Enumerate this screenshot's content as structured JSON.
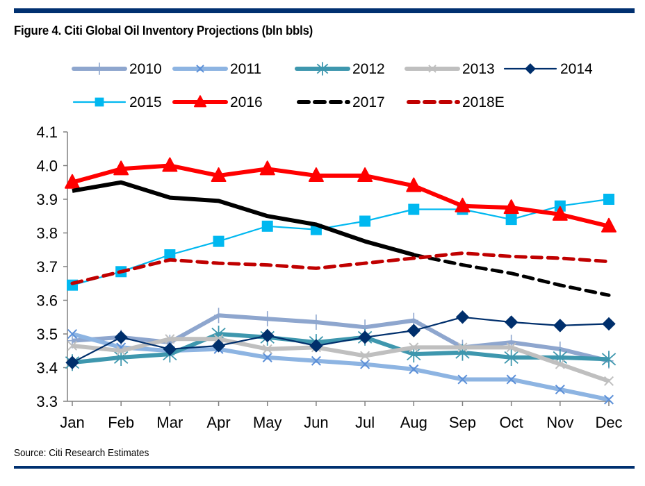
{
  "figure": {
    "title": "Figure 4. Citi Global Oil Inventory Projections (bln bbls)",
    "source": "Source: Citi Research Estimates",
    "rule_color": "#003070"
  },
  "chart_data": {
    "type": "line",
    "title": "Figure 4. Citi Global Oil Inventory Projections (bln bbls)",
    "xlabel": "",
    "ylabel": "",
    "categories": [
      "Jan",
      "Feb",
      "Mar",
      "Apr",
      "May",
      "Jun",
      "Jul",
      "Aug",
      "Sep",
      "Oct",
      "Nov",
      "Dec"
    ],
    "ylim": [
      3.3,
      4.1
    ],
    "yticks": [
      3.3,
      3.4,
      3.5,
      3.6,
      3.7,
      3.8,
      3.9,
      4.0,
      4.1
    ],
    "ytick_labels": [
      "3.3",
      "3.4",
      "3.5",
      "3.6",
      "3.7",
      "3.8",
      "3.9",
      "4.0",
      "4.1"
    ],
    "grid": false,
    "legend_position": "top",
    "series": [
      {
        "name": "2010",
        "color": "#8EA6CE",
        "marker": "plus",
        "marker_color": "#8EA6CE",
        "style": "solid",
        "weight": "thick",
        "values": [
          3.48,
          3.49,
          3.475,
          3.555,
          3.545,
          3.535,
          3.52,
          3.54,
          3.46,
          3.475,
          3.455,
          3.42
        ]
      },
      {
        "name": "2011",
        "color": "#8DB4E2",
        "marker": "x",
        "marker_color": "#5B8FD8",
        "style": "solid",
        "weight": "thick",
        "values": [
          3.5,
          3.46,
          3.45,
          3.455,
          3.43,
          3.42,
          3.41,
          3.395,
          3.365,
          3.365,
          3.335,
          3.305
        ]
      },
      {
        "name": "2012",
        "color": "#3E97AE",
        "marker": "asterisk",
        "marker_color": "#3E97AE",
        "style": "solid",
        "weight": "thick",
        "values": [
          3.415,
          3.43,
          3.44,
          3.5,
          3.49,
          3.475,
          3.49,
          3.44,
          3.445,
          3.43,
          3.43,
          3.425
        ]
      },
      {
        "name": "2013",
        "color": "#BFBFBF",
        "marker": "x",
        "marker_color": "#BFBFBF",
        "style": "solid",
        "weight": "thick",
        "values": [
          3.465,
          3.45,
          3.485,
          3.485,
          3.455,
          3.46,
          3.435,
          3.46,
          3.46,
          3.46,
          3.41,
          3.36
        ]
      },
      {
        "name": "2014",
        "color": "#002F6C",
        "marker": "diamond",
        "marker_color": "#002F6C",
        "style": "solid",
        "weight": "thin",
        "values": [
          3.415,
          3.49,
          3.455,
          3.465,
          3.495,
          3.465,
          3.49,
          3.51,
          3.55,
          3.535,
          3.525,
          3.53
        ]
      },
      {
        "name": "2015",
        "color": "#00B8F0",
        "marker": "square",
        "marker_color": "#00B8F0",
        "style": "solid",
        "weight": "thin",
        "values": [
          3.645,
          3.685,
          3.735,
          3.775,
          3.82,
          3.81,
          3.835,
          3.87,
          3.87,
          3.84,
          3.88,
          3.9
        ]
      },
      {
        "name": "2016",
        "color": "#FF0000",
        "marker": "triangle",
        "marker_color": "#FF0000",
        "style": "solid",
        "weight": "thick",
        "values": [
          3.95,
          3.99,
          4.0,
          3.97,
          3.99,
          3.97,
          3.97,
          3.94,
          3.88,
          3.875,
          3.855,
          3.82
        ]
      },
      {
        "name": "2017",
        "color": "#000000",
        "marker": "none",
        "marker_color": "#000000",
        "style": "solid-then-dashed",
        "solid_until_index": 7,
        "weight": "thick",
        "values": [
          3.925,
          3.95,
          3.905,
          3.895,
          3.85,
          3.825,
          3.775,
          3.735,
          3.705,
          3.68,
          3.645,
          3.615
        ]
      },
      {
        "name": "2018E",
        "color": "#C00000",
        "marker": "none",
        "marker_color": "#C00000",
        "style": "dashed",
        "weight": "thick",
        "values": [
          3.65,
          3.685,
          3.72,
          3.71,
          3.705,
          3.695,
          3.71,
          3.725,
          3.74,
          3.73,
          3.725,
          3.715
        ]
      }
    ],
    "legend": [
      {
        "label": "2010",
        "series_index": 0
      },
      {
        "label": "2011",
        "series_index": 1
      },
      {
        "label": "2012",
        "series_index": 2
      },
      {
        "label": "2013",
        "series_index": 3
      },
      {
        "label": "2014",
        "series_index": 4
      },
      {
        "label": "2015",
        "series_index": 5
      },
      {
        "label": "2016",
        "series_index": 6
      },
      {
        "label": "2017",
        "series_index": 7
      },
      {
        "label": "2018E",
        "series_index": 8
      }
    ]
  }
}
